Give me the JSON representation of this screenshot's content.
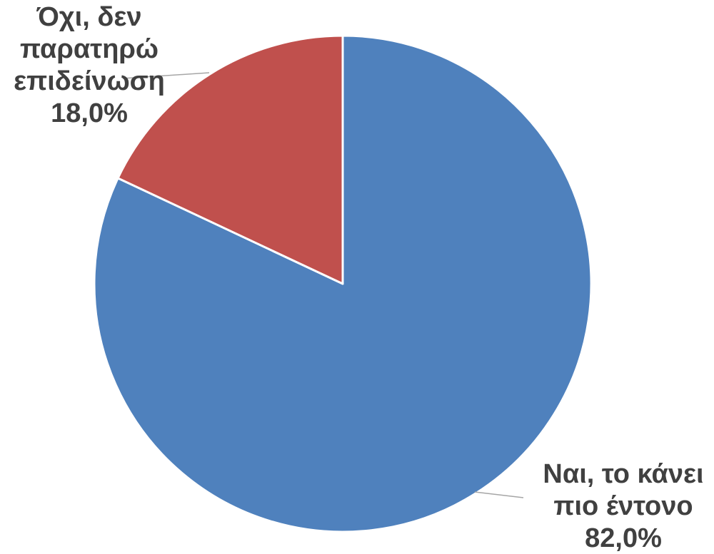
{
  "chart_data": {
    "type": "pie",
    "slices": [
      {
        "category_lines": [
          "Ναι, το κάνει",
          "πιο έντονο"
        ],
        "percent_label": "82,0%",
        "value": 82.0,
        "color": "#4f81bd"
      },
      {
        "category_lines": [
          "Όχι, δεν",
          "παρατηρώ",
          "επιδείνωση"
        ],
        "percent_label": "18,0%",
        "value": 18.0,
        "color": "#c0504d"
      }
    ],
    "start": "12 o'clock",
    "direction": "clockwise",
    "legend": "none",
    "data_labels": "category name and percentage, outside with leader lines"
  }
}
